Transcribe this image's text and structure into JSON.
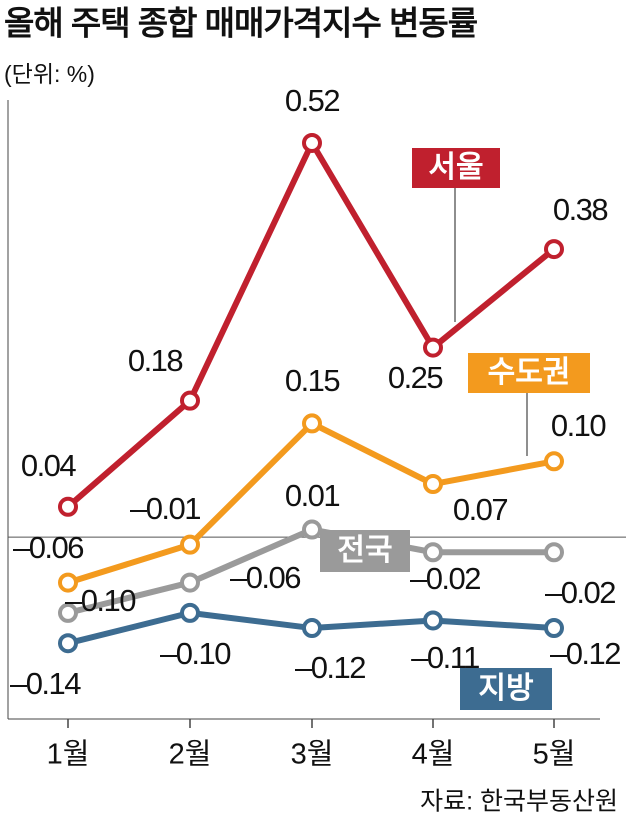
{
  "chart_data": {
    "type": "line",
    "title": "올해 주택 종합 매매가격지수 변동률",
    "subtitle": "(단위: %)",
    "source": "자료: 한국부동산원",
    "categories": [
      "1월",
      "2월",
      "3월",
      "4월",
      "5월"
    ],
    "ylim": [
      -0.24,
      0.58
    ],
    "series": [
      {
        "name": "서울",
        "color": "#c0202e",
        "values": [
          0.04,
          0.18,
          0.52,
          0.25,
          0.38
        ],
        "value_labels": [
          "0.04",
          "0.18",
          "0.52",
          "0.25",
          "0.38"
        ]
      },
      {
        "name": "수도권",
        "color": "#f39a1e",
        "values": [
          -0.06,
          -0.01,
          0.15,
          0.07,
          0.1
        ],
        "value_labels": [
          "–0.06",
          "–0.01",
          "0.15",
          "0.07",
          "0.10"
        ]
      },
      {
        "name": "전국",
        "color": "#9a9a9a",
        "values": [
          -0.1,
          -0.06,
          0.01,
          -0.02,
          -0.02
        ],
        "value_labels": [
          "–0.10",
          "–0.06",
          "0.01",
          "–0.02",
          "–0.02"
        ]
      },
      {
        "name": "지방",
        "color": "#3d6c91",
        "values": [
          -0.14,
          -0.1,
          -0.12,
          -0.11,
          -0.12
        ],
        "value_labels": [
          "–0.14",
          "–0.10",
          "–0.12",
          "–0.11",
          "–0.12"
        ]
      }
    ]
  }
}
